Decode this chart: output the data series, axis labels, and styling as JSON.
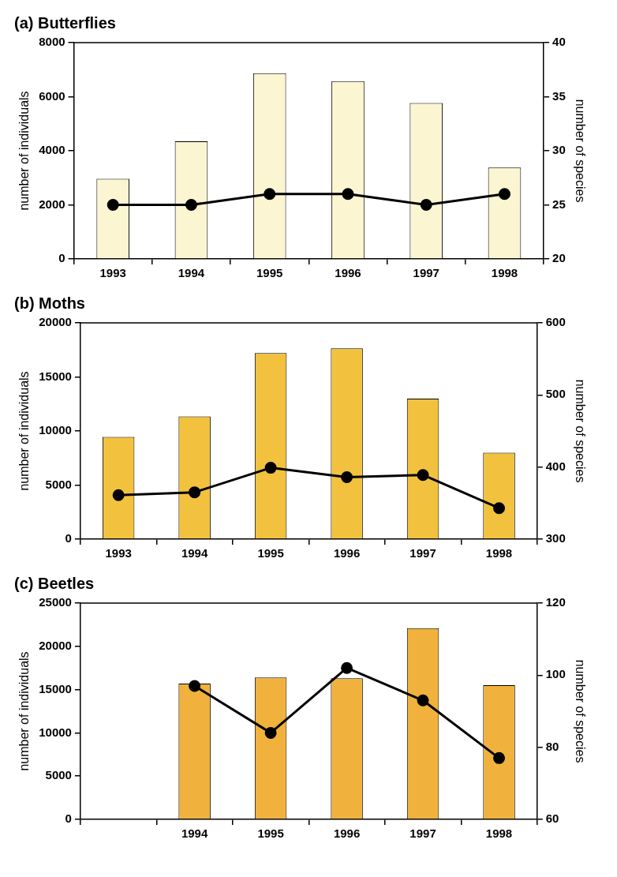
{
  "chart_data": [
    {
      "type": "bar",
      "title": "(a) Butterflies",
      "ylabel": "number of individuals",
      "y2label": "number of species",
      "categories": [
        "1993",
        "1994",
        "1995",
        "1996",
        "1997",
        "1998"
      ],
      "ylim": [
        0,
        8000
      ],
      "yticks": [
        0,
        2000,
        4000,
        6000,
        8000
      ],
      "y2lim": [
        20,
        40
      ],
      "y2ticks": [
        20,
        25,
        30,
        35,
        40
      ],
      "grid": false,
      "legend": false,
      "marker": "circle",
      "series": [
        {
          "color": "#fbf5d2",
          "values": [
            2960,
            4350,
            6870,
            6580,
            5770,
            3380
          ]
        },
        {
          "type": "line",
          "axis": "y2",
          "color": "#000000",
          "values": [
            25,
            25,
            26,
            26,
            25,
            26
          ]
        }
      ]
    },
    {
      "type": "bar",
      "title": "(b) Moths",
      "ylabel": "number of individuals",
      "y2label": "number of species",
      "categories": [
        "1993",
        "1994",
        "1995",
        "1996",
        "1997",
        "1998"
      ],
      "ylim": [
        0,
        20000
      ],
      "yticks": [
        0,
        5000,
        10000,
        15000,
        20000
      ],
      "y2lim": [
        300,
        600
      ],
      "y2ticks": [
        300,
        400,
        500,
        600
      ],
      "grid": false,
      "legend": false,
      "marker": "circle",
      "series": [
        {
          "color": "#f2c23e",
          "values": [
            9450,
            11350,
            17200,
            17650,
            13000,
            8000
          ]
        },
        {
          "type": "line",
          "axis": "y2",
          "color": "#000000",
          "values": [
            361,
            365,
            399,
            386,
            389,
            343
          ]
        }
      ]
    },
    {
      "type": "bar",
      "title": "(c) Beetles",
      "ylabel": "number of individuals",
      "y2label": "number of species",
      "categories": [
        null,
        "1994",
        "1995",
        "1996",
        "1997",
        "1998"
      ],
      "ylim": [
        0,
        25000
      ],
      "yticks": [
        0,
        5000,
        10000,
        15000,
        20000,
        25000
      ],
      "y2lim": [
        60,
        120
      ],
      "y2ticks": [
        60,
        80,
        100,
        120
      ],
      "grid": false,
      "legend": false,
      "marker": "circle",
      "series": [
        {
          "color": "#f0b23c",
          "values": [
            null,
            15700,
            16400,
            16300,
            22100,
            15500
          ]
        },
        {
          "type": "line",
          "axis": "y2",
          "color": "#000000",
          "values": [
            null,
            97,
            84,
            102,
            93,
            77
          ]
        }
      ]
    }
  ]
}
